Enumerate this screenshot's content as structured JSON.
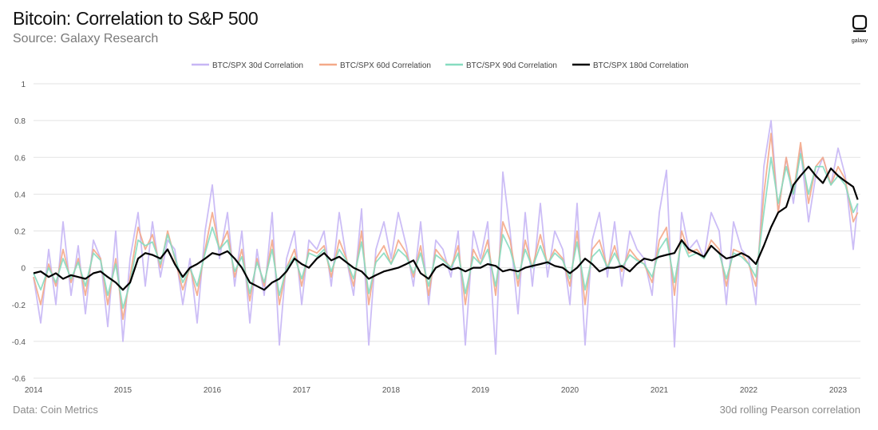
{
  "header": {
    "title": "Bitcoin: Correlation to S&P 500",
    "subtitle": "Source: Galaxy Research"
  },
  "logo": {
    "icon": "galaxy-logo-icon",
    "label": "galaxy"
  },
  "footer": {
    "left": "Data: Coin Metrics",
    "right": "30d rolling Pearson correlation"
  },
  "colors": {
    "s30": "#c7b6f5",
    "s60": "#f4a988",
    "s90": "#86dcc0",
    "s180": "#000000",
    "grid": "#e3e3e3",
    "tick": "#555555"
  },
  "chart_data": {
    "type": "line",
    "title": "Bitcoin: Correlation to S&P 500",
    "xlabel": "",
    "ylabel": "",
    "xlim": [
      2014.0,
      2023.25
    ],
    "ylim": [
      -0.6,
      1.0
    ],
    "yticks": [
      1,
      0.8,
      0.6,
      0.4,
      0.2,
      0,
      -0.2,
      -0.4,
      -0.6
    ],
    "ytick_labels": [
      "1",
      "0.8",
      "0.6",
      "0.4",
      "0.2",
      "0",
      "-0.2",
      "-0.4",
      "-0.6"
    ],
    "xticks": [
      2014,
      2015,
      2016,
      2017,
      2018,
      2019,
      2020,
      2021,
      2022,
      2023
    ],
    "xtick_labels": [
      "2014",
      "2015",
      "2016",
      "2017",
      "2018",
      "2019",
      "2020",
      "2021",
      "2022",
      "2023"
    ],
    "grid": "horizontal",
    "legend_position": "top-center",
    "series": [
      {
        "name": "BTC/SPX 30d Correlation",
        "x": [
          2014.0,
          2014.08,
          2014.17,
          2014.25,
          2014.33,
          2014.42,
          2014.5,
          2014.58,
          2014.67,
          2014.75,
          2014.83,
          2014.92,
          2015.0,
          2015.08,
          2015.17,
          2015.25,
          2015.33,
          2015.42,
          2015.5,
          2015.58,
          2015.67,
          2015.75,
          2015.83,
          2015.92,
          2016.0,
          2016.08,
          2016.17,
          2016.25,
          2016.33,
          2016.42,
          2016.5,
          2016.58,
          2016.67,
          2016.75,
          2016.83,
          2016.92,
          2017.0,
          2017.08,
          2017.17,
          2017.25,
          2017.33,
          2017.42,
          2017.5,
          2017.58,
          2017.67,
          2017.75,
          2017.83,
          2017.92,
          2018.0,
          2018.08,
          2018.17,
          2018.25,
          2018.33,
          2018.42,
          2018.5,
          2018.58,
          2018.67,
          2018.75,
          2018.83,
          2018.92,
          2019.0,
          2019.08,
          2019.17,
          2019.25,
          2019.33,
          2019.42,
          2019.5,
          2019.58,
          2019.67,
          2019.75,
          2019.83,
          2019.92,
          2020.0,
          2020.08,
          2020.17,
          2020.25,
          2020.33,
          2020.42,
          2020.5,
          2020.58,
          2020.67,
          2020.75,
          2020.83,
          2020.92,
          2021.0,
          2021.08,
          2021.17,
          2021.25,
          2021.33,
          2021.42,
          2021.5,
          2021.58,
          2021.67,
          2021.75,
          2021.83,
          2021.92,
          2022.0,
          2022.08,
          2022.17,
          2022.25,
          2022.33,
          2022.42,
          2022.5,
          2022.58,
          2022.67,
          2022.75,
          2022.83,
          2022.92,
          2023.0,
          2023.08,
          2023.17,
          2023.22
        ],
        "values": [
          -0.05,
          -0.3,
          0.1,
          -0.2,
          0.25,
          -0.15,
          0.12,
          -0.25,
          0.15,
          0.05,
          -0.32,
          0.2,
          -0.4,
          0.05,
          0.3,
          -0.1,
          0.25,
          -0.05,
          0.15,
          0.1,
          -0.2,
          0.05,
          -0.3,
          0.2,
          0.45,
          0.05,
          0.3,
          -0.1,
          0.2,
          -0.3,
          0.1,
          -0.15,
          0.3,
          -0.42,
          0.05,
          0.2,
          -0.2,
          0.15,
          0.1,
          0.2,
          -0.1,
          0.3,
          0.05,
          -0.15,
          0.32,
          -0.42,
          0.1,
          0.25,
          0.05,
          0.3,
          0.12,
          -0.1,
          0.25,
          -0.2,
          0.15,
          0.1,
          -0.05,
          0.2,
          -0.42,
          0.2,
          0.05,
          0.25,
          -0.47,
          0.52,
          0.2,
          -0.25,
          0.3,
          -0.1,
          0.35,
          -0.05,
          0.2,
          0.1,
          -0.2,
          0.35,
          -0.42,
          0.15,
          0.3,
          -0.05,
          0.25,
          -0.1,
          0.2,
          0.1,
          0.05,
          -0.15,
          0.3,
          0.53,
          -0.43,
          0.3,
          0.1,
          0.15,
          0.05,
          0.3,
          0.2,
          -0.2,
          0.25,
          0.1,
          0.05,
          -0.2,
          0.55,
          0.8,
          0.3,
          0.6,
          0.35,
          0.65,
          0.25,
          0.5,
          0.6,
          0.45,
          0.65,
          0.5,
          0.1,
          0.35
        ]
      },
      {
        "name": "BTC/SPX 60d Correlation",
        "x": [
          2014.0,
          2014.08,
          2014.17,
          2014.25,
          2014.33,
          2014.42,
          2014.5,
          2014.58,
          2014.67,
          2014.75,
          2014.83,
          2014.92,
          2015.0,
          2015.08,
          2015.17,
          2015.25,
          2015.33,
          2015.42,
          2015.5,
          2015.58,
          2015.67,
          2015.75,
          2015.83,
          2015.92,
          2016.0,
          2016.08,
          2016.17,
          2016.25,
          2016.33,
          2016.42,
          2016.5,
          2016.58,
          2016.67,
          2016.75,
          2016.83,
          2016.92,
          2017.0,
          2017.08,
          2017.17,
          2017.25,
          2017.33,
          2017.42,
          2017.5,
          2017.58,
          2017.67,
          2017.75,
          2017.83,
          2017.92,
          2018.0,
          2018.08,
          2018.17,
          2018.25,
          2018.33,
          2018.42,
          2018.5,
          2018.58,
          2018.67,
          2018.75,
          2018.83,
          2018.92,
          2019.0,
          2019.08,
          2019.17,
          2019.25,
          2019.33,
          2019.42,
          2019.5,
          2019.58,
          2019.67,
          2019.75,
          2019.83,
          2019.92,
          2020.0,
          2020.08,
          2020.17,
          2020.25,
          2020.33,
          2020.42,
          2020.5,
          2020.58,
          2020.67,
          2020.75,
          2020.83,
          2020.92,
          2021.0,
          2021.08,
          2021.17,
          2021.25,
          2021.33,
          2021.42,
          2021.5,
          2021.58,
          2021.67,
          2021.75,
          2021.83,
          2021.92,
          2022.0,
          2022.08,
          2022.17,
          2022.25,
          2022.33,
          2022.42,
          2022.5,
          2022.58,
          2022.67,
          2022.75,
          2022.83,
          2022.92,
          2023.0,
          2023.08,
          2023.17,
          2023.22
        ],
        "values": [
          -0.05,
          -0.2,
          0.02,
          -0.1,
          0.1,
          -0.08,
          0.05,
          -0.15,
          0.1,
          0.05,
          -0.2,
          0.05,
          -0.28,
          -0.05,
          0.22,
          0.1,
          0.18,
          0.0,
          0.2,
          0.05,
          -0.12,
          0.0,
          -0.15,
          0.1,
          0.3,
          0.1,
          0.2,
          -0.05,
          0.1,
          -0.18,
          0.05,
          -0.1,
          0.15,
          -0.2,
          0.0,
          0.1,
          -0.1,
          0.1,
          0.08,
          0.12,
          -0.05,
          0.15,
          0.05,
          -0.1,
          0.2,
          -0.2,
          0.05,
          0.12,
          0.02,
          0.15,
          0.08,
          -0.05,
          0.12,
          -0.15,
          0.1,
          0.05,
          0.0,
          0.12,
          -0.2,
          0.1,
          0.02,
          0.15,
          -0.15,
          0.25,
          0.15,
          -0.1,
          0.15,
          0.0,
          0.18,
          0.02,
          0.1,
          0.05,
          -0.1,
          0.2,
          -0.2,
          0.1,
          0.15,
          0.0,
          0.12,
          -0.02,
          0.1,
          0.05,
          0.02,
          -0.08,
          0.15,
          0.22,
          -0.15,
          0.2,
          0.08,
          0.1,
          0.05,
          0.15,
          0.1,
          -0.1,
          0.1,
          0.08,
          0.02,
          -0.1,
          0.4,
          0.73,
          0.3,
          0.6,
          0.4,
          0.68,
          0.35,
          0.55,
          0.6,
          0.45,
          0.55,
          0.48,
          0.25,
          0.3
        ]
      },
      {
        "name": "BTC/SPX 90d Correlation",
        "x": [
          2014.0,
          2014.08,
          2014.17,
          2014.25,
          2014.33,
          2014.42,
          2014.5,
          2014.58,
          2014.67,
          2014.75,
          2014.83,
          2014.92,
          2015.0,
          2015.08,
          2015.17,
          2015.25,
          2015.33,
          2015.42,
          2015.5,
          2015.58,
          2015.67,
          2015.75,
          2015.83,
          2015.92,
          2016.0,
          2016.08,
          2016.17,
          2016.25,
          2016.33,
          2016.42,
          2016.5,
          2016.58,
          2016.67,
          2016.75,
          2016.83,
          2016.92,
          2017.0,
          2017.08,
          2017.17,
          2017.25,
          2017.33,
          2017.42,
          2017.5,
          2017.58,
          2017.67,
          2017.75,
          2017.83,
          2017.92,
          2018.0,
          2018.08,
          2018.17,
          2018.25,
          2018.33,
          2018.42,
          2018.5,
          2018.58,
          2018.67,
          2018.75,
          2018.83,
          2018.92,
          2019.0,
          2019.08,
          2019.17,
          2019.25,
          2019.33,
          2019.42,
          2019.5,
          2019.58,
          2019.67,
          2019.75,
          2019.83,
          2019.92,
          2020.0,
          2020.08,
          2020.17,
          2020.25,
          2020.33,
          2020.42,
          2020.5,
          2020.58,
          2020.67,
          2020.75,
          2020.83,
          2020.92,
          2021.0,
          2021.08,
          2021.17,
          2021.25,
          2021.33,
          2021.42,
          2021.5,
          2021.58,
          2021.67,
          2021.75,
          2021.83,
          2021.92,
          2022.0,
          2022.08,
          2022.17,
          2022.25,
          2022.33,
          2022.42,
          2022.5,
          2022.58,
          2022.67,
          2022.75,
          2022.83,
          2022.92,
          2023.0,
          2023.08,
          2023.17,
          2023.22
        ],
        "values": [
          -0.03,
          -0.12,
          0.0,
          -0.08,
          0.05,
          -0.06,
          0.03,
          -0.1,
          0.08,
          0.04,
          -0.15,
          0.02,
          -0.22,
          -0.08,
          0.15,
          0.12,
          0.14,
          0.02,
          0.18,
          0.06,
          -0.08,
          0.0,
          -0.1,
          0.08,
          0.22,
          0.1,
          0.15,
          -0.02,
          0.06,
          -0.14,
          0.03,
          -0.08,
          0.1,
          -0.15,
          0.0,
          0.06,
          -0.06,
          0.08,
          0.06,
          0.1,
          -0.02,
          0.1,
          0.04,
          -0.06,
          0.14,
          -0.14,
          0.03,
          0.08,
          0.02,
          0.1,
          0.06,
          -0.03,
          0.08,
          -0.1,
          0.07,
          0.04,
          0.0,
          0.08,
          -0.14,
          0.06,
          0.02,
          0.1,
          -0.1,
          0.18,
          0.1,
          -0.06,
          0.1,
          0.0,
          0.12,
          0.02,
          0.08,
          0.04,
          -0.06,
          0.14,
          -0.12,
          0.06,
          0.1,
          0.0,
          0.08,
          0.0,
          0.07,
          0.04,
          0.02,
          -0.05,
          0.1,
          0.16,
          -0.08,
          0.15,
          0.06,
          0.08,
          0.05,
          0.12,
          0.08,
          -0.06,
          0.08,
          0.06,
          0.02,
          -0.05,
          0.3,
          0.6,
          0.35,
          0.55,
          0.4,
          0.62,
          0.4,
          0.55,
          0.55,
          0.45,
          0.5,
          0.45,
          0.3,
          0.35
        ]
      },
      {
        "name": "BTC/SPX 180d Correlation",
        "x": [
          2014.0,
          2014.08,
          2014.17,
          2014.25,
          2014.33,
          2014.42,
          2014.5,
          2014.58,
          2014.67,
          2014.75,
          2014.83,
          2014.92,
          2015.0,
          2015.08,
          2015.17,
          2015.25,
          2015.33,
          2015.42,
          2015.5,
          2015.58,
          2015.67,
          2015.75,
          2015.83,
          2015.92,
          2016.0,
          2016.08,
          2016.17,
          2016.25,
          2016.33,
          2016.42,
          2016.5,
          2016.58,
          2016.67,
          2016.75,
          2016.83,
          2016.92,
          2017.0,
          2017.08,
          2017.17,
          2017.25,
          2017.33,
          2017.42,
          2017.5,
          2017.58,
          2017.67,
          2017.75,
          2017.83,
          2017.92,
          2018.0,
          2018.08,
          2018.17,
          2018.25,
          2018.33,
          2018.42,
          2018.5,
          2018.58,
          2018.67,
          2018.75,
          2018.83,
          2018.92,
          2019.0,
          2019.08,
          2019.17,
          2019.25,
          2019.33,
          2019.42,
          2019.5,
          2019.58,
          2019.67,
          2019.75,
          2019.83,
          2019.92,
          2020.0,
          2020.08,
          2020.17,
          2020.25,
          2020.33,
          2020.42,
          2020.5,
          2020.58,
          2020.67,
          2020.75,
          2020.83,
          2020.92,
          2021.0,
          2021.08,
          2021.17,
          2021.25,
          2021.33,
          2021.42,
          2021.5,
          2021.58,
          2021.67,
          2021.75,
          2021.83,
          2021.92,
          2022.0,
          2022.08,
          2022.17,
          2022.25,
          2022.33,
          2022.42,
          2022.5,
          2022.58,
          2022.67,
          2022.75,
          2022.83,
          2022.92,
          2023.0,
          2023.08,
          2023.17,
          2023.22
        ],
        "values": [
          -0.03,
          -0.02,
          -0.05,
          -0.03,
          -0.06,
          -0.04,
          -0.05,
          -0.06,
          -0.03,
          -0.02,
          -0.05,
          -0.08,
          -0.12,
          -0.08,
          0.05,
          0.08,
          0.07,
          0.05,
          0.1,
          0.02,
          -0.05,
          0.0,
          0.02,
          0.05,
          0.08,
          0.07,
          0.09,
          0.05,
          0.0,
          -0.08,
          -0.1,
          -0.12,
          -0.08,
          -0.06,
          -0.02,
          0.05,
          0.02,
          0.0,
          0.05,
          0.08,
          0.04,
          0.06,
          0.03,
          0.0,
          -0.02,
          -0.06,
          -0.04,
          -0.02,
          -0.01,
          0.0,
          0.02,
          0.04,
          -0.03,
          -0.06,
          0.0,
          0.02,
          -0.01,
          0.0,
          -0.02,
          0.0,
          0.0,
          0.02,
          0.01,
          -0.02,
          -0.01,
          -0.02,
          0.0,
          0.01,
          0.02,
          0.03,
          0.01,
          0.0,
          -0.03,
          0.0,
          0.05,
          0.02,
          -0.02,
          0.0,
          0.0,
          0.01,
          -0.02,
          0.02,
          0.05,
          0.04,
          0.06,
          0.07,
          0.08,
          0.15,
          0.1,
          0.08,
          0.06,
          0.12,
          0.08,
          0.05,
          0.06,
          0.08,
          0.06,
          0.02,
          0.12,
          0.22,
          0.3,
          0.33,
          0.45,
          0.5,
          0.55,
          0.5,
          0.46,
          0.54,
          0.5,
          0.47,
          0.44,
          0.37
        ]
      }
    ]
  }
}
